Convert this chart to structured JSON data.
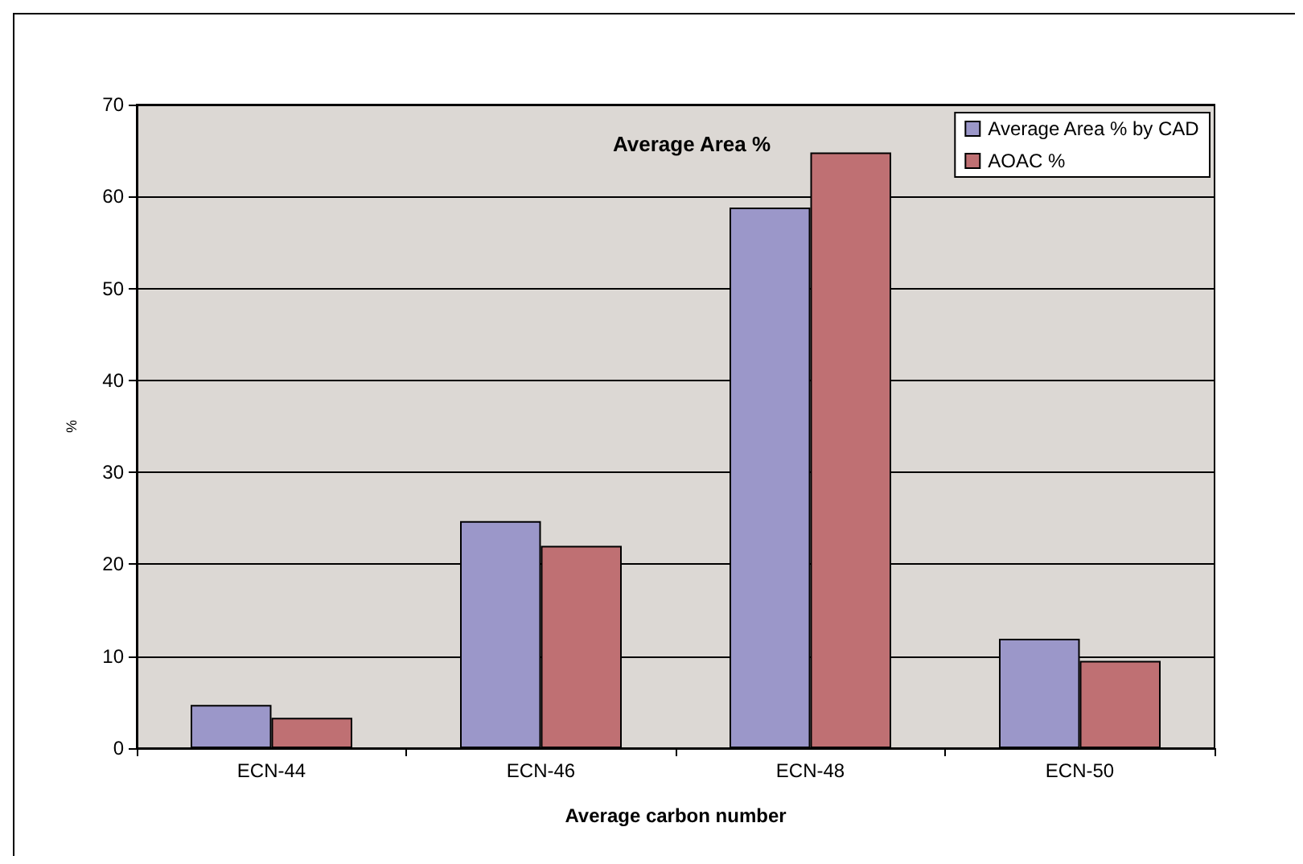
{
  "chart_data": {
    "type": "bar",
    "title": "Average Area %",
    "xlabel": "Average carbon number",
    "ylabel": "%",
    "categories": [
      "ECN-44",
      "ECN-46",
      "ECN-48",
      "ECN-50"
    ],
    "series": [
      {
        "name": "Average Area % by CAD",
        "color": "#9b97c9",
        "values": [
          4.7,
          24.7,
          58.8,
          11.9
        ]
      },
      {
        "name": "AOAC %",
        "color": "#bf7073",
        "values": [
          3.3,
          22.0,
          64.8,
          9.5
        ]
      }
    ],
    "ylim": [
      0,
      70
    ],
    "yticks": [
      0,
      10,
      20,
      30,
      40,
      50,
      60,
      70
    ],
    "grid": "y",
    "legend": "top right"
  }
}
